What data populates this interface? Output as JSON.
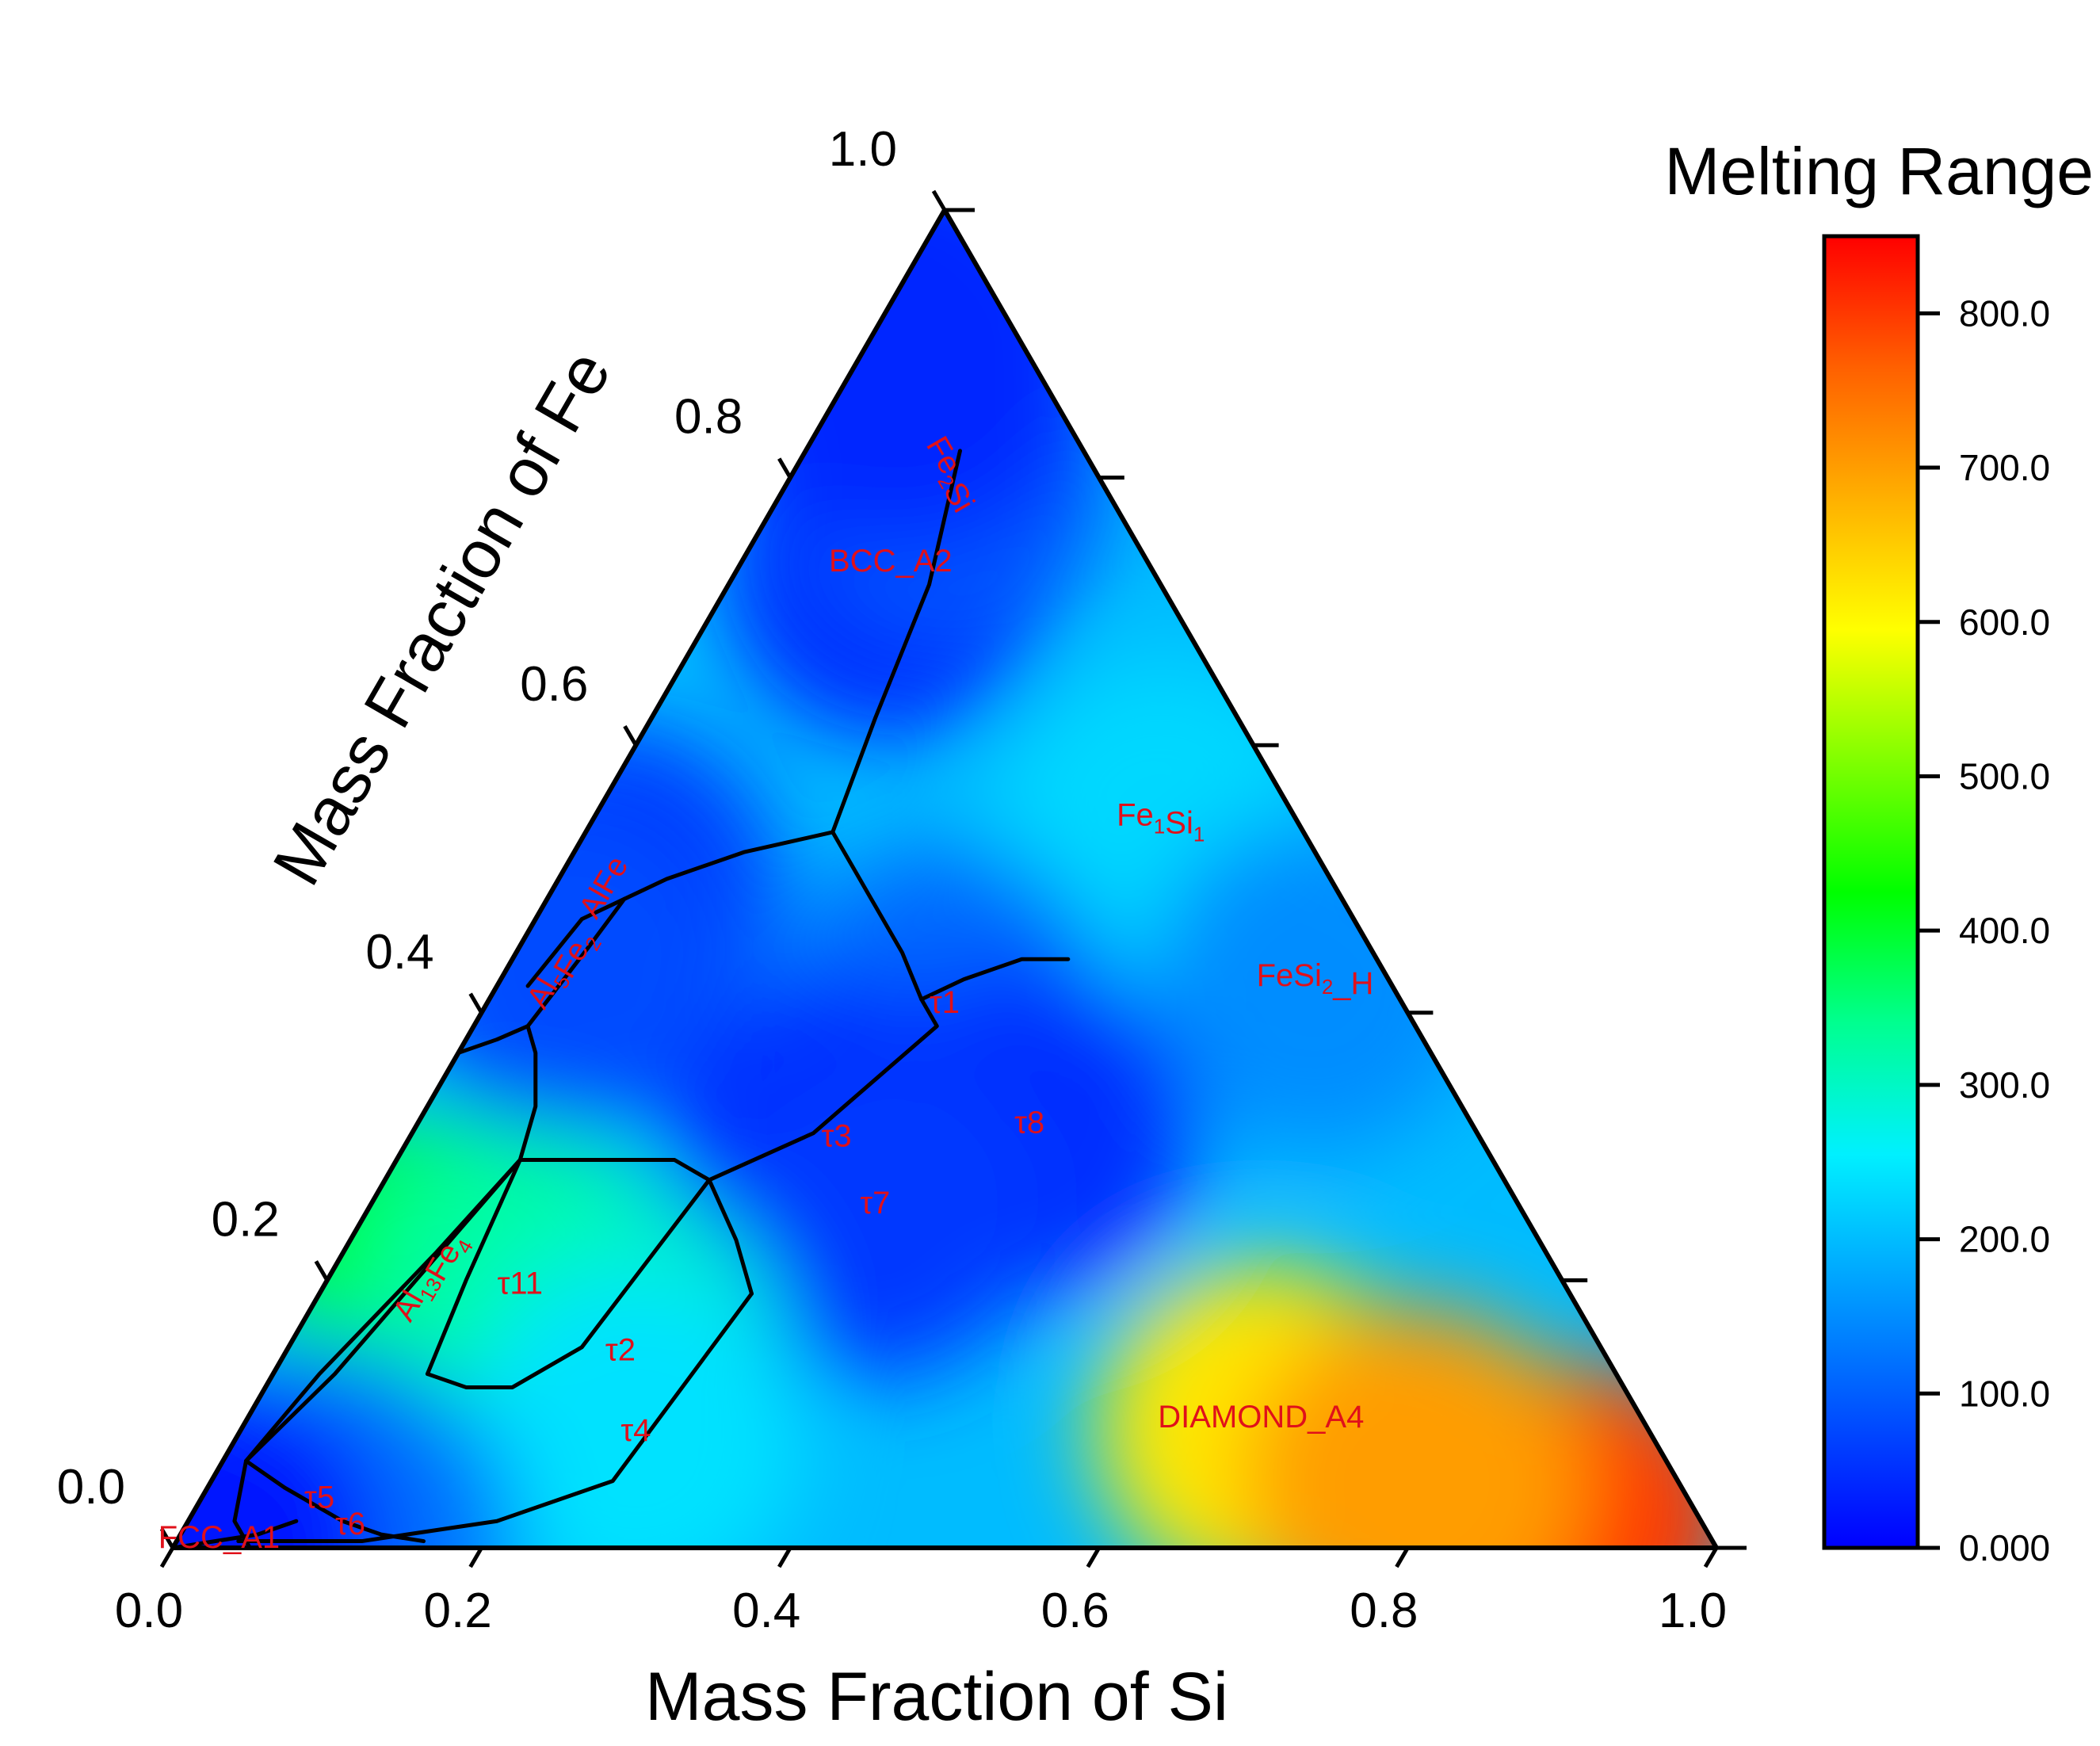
{
  "chart_data": {
    "type": "ternary_contour",
    "axes": {
      "bottom": {
        "label": "Mass Fraction of Si",
        "range": [
          0,
          1
        ],
        "ticks": [
          "0.0",
          "0.2",
          "0.4",
          "0.6",
          "0.8",
          "1.0"
        ]
      },
      "left": {
        "label": "Mass Fraction of Fe",
        "range": [
          0,
          1
        ],
        "ticks": [
          "0.0",
          "0.2",
          "0.4",
          "0.6",
          "0.8",
          "1.0"
        ]
      }
    },
    "colorbar": {
      "title": "Melting Range",
      "range": [
        0,
        850
      ],
      "tick_labels": [
        "0.000",
        "100.0",
        "200.0",
        "300.0",
        "400.0",
        "500.0",
        "600.0",
        "700.0",
        "800.0"
      ],
      "tick_values": [
        0,
        100,
        200,
        300,
        400,
        500,
        600,
        700,
        800
      ],
      "colormap": [
        "#0000ff",
        "#0050ff",
        "#00a0ff",
        "#00f0ff",
        "#00ff90",
        "#00ff00",
        "#80ff00",
        "#ffff00",
        "#ffb000",
        "#ff6000",
        "#ff0000"
      ]
    },
    "colormap_stops": [
      0,
      0.1,
      0.2,
      0.3,
      0.4,
      0.5,
      0.6,
      0.7,
      0.8,
      0.9,
      1.0
    ],
    "regions": [
      {
        "id": "bcc-a2",
        "name": "BCC_A2",
        "si": 0.1,
        "fe": 0.73,
        "value": 40
      },
      {
        "id": "fe2si",
        "name": "Fe",
        "sub": "2",
        "tail": "Si",
        "si": 0.1,
        "fe": 0.8,
        "value": 90
      },
      {
        "id": "fe1si1",
        "name": "Fe",
        "sub": "1",
        "tail": "Si",
        "sub2": "1",
        "si": 0.37,
        "fe": 0.54,
        "value": 230
      },
      {
        "id": "fesi2-h",
        "name": "FeSi",
        "sub": "2",
        "tail": "_H",
        "si": 0.53,
        "fe": 0.42,
        "value": 150
      },
      {
        "id": "alfe",
        "name": "AlFe",
        "si": 0.04,
        "fe": 0.49,
        "value": 60
      },
      {
        "id": "al5fe2",
        "name": "Al",
        "sub": "5",
        "tail": "Fe",
        "sub2": "2",
        "si": 0.04,
        "fe": 0.43,
        "value": 80
      },
      {
        "id": "al13fe4",
        "name": "Al",
        "sub": "13",
        "tail": "Fe",
        "sub2": "4",
        "si": 0.07,
        "fe": 0.2,
        "value": 420
      },
      {
        "id": "t1",
        "name": "τ1",
        "si": 0.3,
        "fe": 0.4,
        "value": 110
      },
      {
        "id": "t3",
        "name": "τ3",
        "si": 0.28,
        "fe": 0.3,
        "value": 40
      },
      {
        "id": "t8",
        "name": "τ8",
        "si": 0.4,
        "fe": 0.31,
        "value": 50
      },
      {
        "id": "t7",
        "name": "τ7",
        "si": 0.33,
        "fe": 0.25,
        "value": 60
      },
      {
        "id": "t11",
        "name": "τ11",
        "si": 0.13,
        "fe": 0.19,
        "value": 330
      },
      {
        "id": "t2",
        "name": "τ2",
        "si": 0.22,
        "fe": 0.14,
        "value": 300
      },
      {
        "id": "t4",
        "name": "τ4",
        "si": 0.26,
        "fe": 0.08,
        "value": 240
      },
      {
        "id": "diamond-a4",
        "name": "DIAMOND_A4",
        "si": 0.66,
        "fe": 0.09,
        "value": 620
      },
      {
        "id": "t5",
        "name": "τ5",
        "si": 0.08,
        "fe": 0.03,
        "value": 130
      },
      {
        "id": "t6",
        "name": "τ6",
        "si": 0.11,
        "fe": 0.01,
        "value": 120
      },
      {
        "id": "fcc-a1",
        "name": "FCC_A1",
        "si": 0.03,
        "fe": 0.0,
        "value": 20
      }
    ],
    "boundaries": [
      [
        [
          0.1,
          0.82
        ],
        [
          0.13,
          0.72
        ],
        [
          0.145,
          0.62
        ],
        [
          0.16,
          0.535
        ]
      ],
      [
        [
          0.16,
          0.535
        ],
        [
          0.21,
          0.485
        ],
        [
          0.25,
          0.445
        ],
        [
          0.28,
          0.41
        ]
      ],
      [
        [
          0.28,
          0.41
        ],
        [
          0.3,
          0.425
        ],
        [
          0.33,
          0.44
        ],
        [
          0.36,
          0.44
        ]
      ],
      [
        [
          0.16,
          0.535
        ],
        [
          0.11,
          0.52
        ],
        [
          0.07,
          0.5
        ],
        [
          0.05,
          0.485
        ]
      ],
      [
        [
          0.05,
          0.485
        ],
        [
          0.03,
          0.47
        ],
        [
          0.02,
          0.42
        ]
      ],
      [
        [
          0.05,
          0.485
        ],
        [
          0.045,
          0.45
        ],
        [
          0.035,
          0.39
        ]
      ],
      [
        [
          0.035,
          0.39
        ],
        [
          0.02,
          0.38
        ],
        [
          0.0,
          0.37
        ]
      ],
      [
        [
          0.035,
          0.39
        ],
        [
          0.05,
          0.37
        ],
        [
          0.07,
          0.33
        ],
        [
          0.08,
          0.29
        ]
      ],
      [
        [
          0.08,
          0.29
        ],
        [
          0.13,
          0.29
        ],
        [
          0.18,
          0.29
        ],
        [
          0.21,
          0.275
        ]
      ],
      [
        [
          0.21,
          0.275
        ],
        [
          0.26,
          0.31
        ],
        [
          0.28,
          0.35
        ],
        [
          0.3,
          0.39
        ],
        [
          0.28,
          0.41
        ]
      ],
      [
        [
          0.21,
          0.275
        ],
        [
          0.25,
          0.23
        ],
        [
          0.28,
          0.19
        ]
      ],
      [
        [
          0.08,
          0.29
        ],
        [
          0.06,
          0.22
        ],
        [
          0.03,
          0.13
        ],
        [
          0.015,
          0.065
        ]
      ],
      [
        [
          0.08,
          0.29
        ],
        [
          0.06,
          0.21
        ],
        [
          0.04,
          0.13
        ],
        [
          0.015,
          0.065
        ]
      ],
      [
        [
          0.08,
          0.29
        ],
        [
          0.09,
          0.2
        ],
        [
          0.1,
          0.13
        ]
      ],
      [
        [
          0.1,
          0.13
        ],
        [
          0.13,
          0.12
        ],
        [
          0.16,
          0.12
        ],
        [
          0.19,
          0.15
        ],
        [
          0.21,
          0.275
        ]
      ],
      [
        [
          0.015,
          0.065
        ],
        [
          0.05,
          0.045
        ],
        [
          0.07,
          0.035
        ],
        [
          0.1,
          0.02
        ],
        [
          0.13,
          0.01
        ],
        [
          0.16,
          0.005
        ]
      ],
      [
        [
          0.015,
          0.065
        ],
        [
          0.03,
          0.02
        ],
        [
          0.05,
          0.0
        ]
      ],
      [
        [
          0.0,
          0.0
        ],
        [
          0.05,
          0.01
        ],
        [
          0.07,
          0.02
        ]
      ],
      [
        [
          0.04,
          0.005
        ],
        [
          0.12,
          0.005
        ],
        [
          0.2,
          0.02
        ],
        [
          0.26,
          0.05
        ],
        [
          0.28,
          0.19
        ]
      ]
    ]
  }
}
